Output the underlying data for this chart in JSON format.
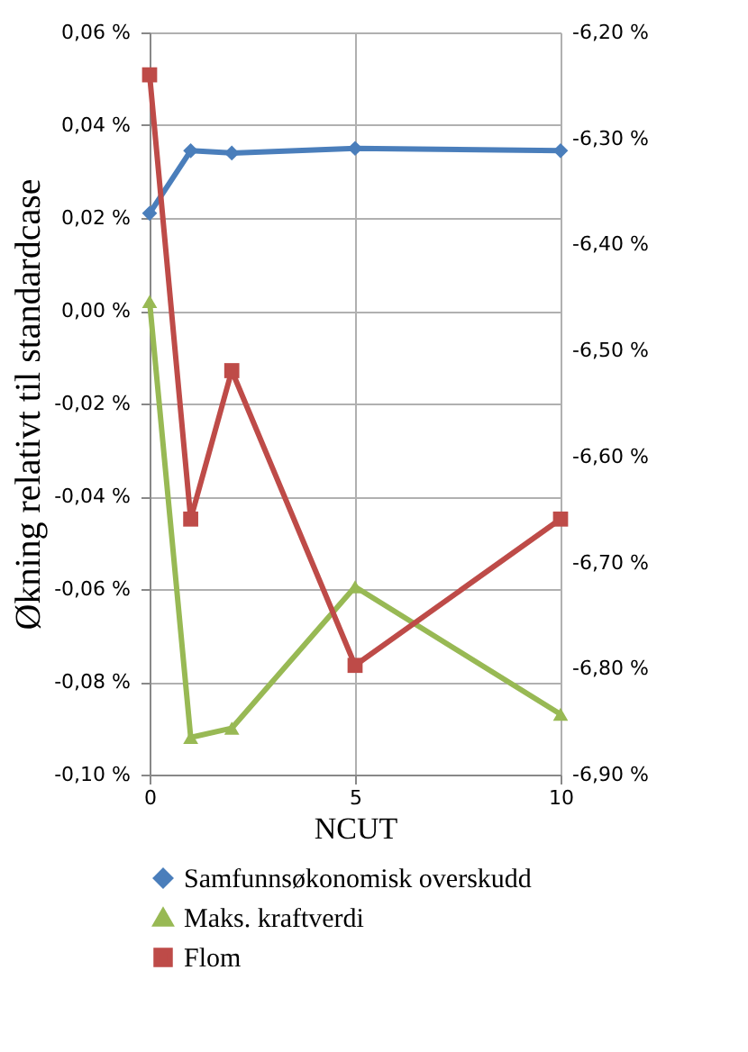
{
  "chart_data": {
    "type": "line",
    "xlabel": "NCUT",
    "ylabel": "Økning relativt til standardcase",
    "x": [
      0,
      1,
      2,
      5,
      10
    ],
    "series": [
      {
        "name": "Samfunnsøkonomisk overskudd",
        "color": "#4a7ebb",
        "marker": "diamond",
        "values": [
          0.021,
          0.0345,
          0.034,
          0.035,
          0.0345
        ]
      },
      {
        "name": "Maks. kraftverdi",
        "color": "#98b954",
        "marker": "triangle",
        "values": [
          0.002,
          -0.092,
          -0.09,
          -0.0595,
          -0.087
        ]
      },
      {
        "name": "Flom",
        "color": "#be4b48",
        "marker": "square",
        "axis": "y2",
        "values": [
          -6.24,
          -6.659,
          -6.519,
          -6.797,
          -6.659
        ]
      }
    ],
    "xlim": [
      0,
      10
    ],
    "xticks": [
      0,
      5,
      10
    ],
    "ylim": [
      -0.1,
      0.06
    ],
    "yticks": [
      {
        "value": -0.1,
        "label": "-0,10 %"
      },
      {
        "value": -0.08,
        "label": "-0,08 %"
      },
      {
        "value": -0.06,
        "label": "-0,06 %"
      },
      {
        "value": -0.04,
        "label": "-0,04 %"
      },
      {
        "value": -0.02,
        "label": "-0,02 %"
      },
      {
        "value": 0,
        "label": "0,00 %"
      },
      {
        "value": 0.02,
        "label": "0,02 %"
      },
      {
        "value": 0.04,
        "label": "0,04 %"
      },
      {
        "value": 0.06,
        "label": "0,06 %"
      }
    ],
    "y2lim": [
      -6.9,
      -6.2
    ],
    "y2ticks": [
      {
        "value": -6.9,
        "label": "-6,90 %"
      },
      {
        "value": -6.8,
        "label": "-6,80 %"
      },
      {
        "value": -6.7,
        "label": "-6,70 %"
      },
      {
        "value": -6.6,
        "label": "-6,60 %"
      },
      {
        "value": -6.5,
        "label": "-6,50 %"
      },
      {
        "value": -6.4,
        "label": "-6,40 %"
      },
      {
        "value": -6.3,
        "label": "-6,30 %"
      },
      {
        "value": -6.2,
        "label": "-6,20 %"
      }
    ],
    "grid": true,
    "legend": "bottom",
    "line_style": "solid"
  }
}
